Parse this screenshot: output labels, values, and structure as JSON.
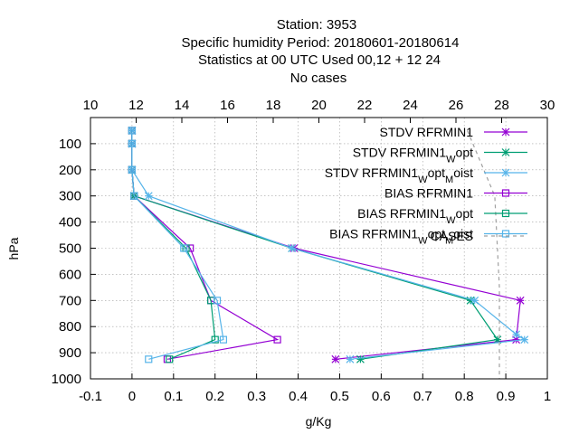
{
  "chart_data": {
    "type": "line",
    "title_lines": [
      "Station:     3953",
      "Specific humidity  Period: 20180601-20180614",
      "Statistics at 00 UTC  Used  00,12  + 12 24",
      "No cases"
    ],
    "xlabel": "g/Kg",
    "ylabel": "hPa",
    "xlim": [
      -0.1,
      1.0
    ],
    "ylim": [
      1000,
      0
    ],
    "x2lim": [
      10,
      30
    ],
    "x_ticks": [
      "-0.1",
      "0",
      "0.1",
      "0.2",
      "0.3",
      "0.4",
      "0.5",
      "0.6",
      "0.7",
      "0.8",
      "0.9",
      "1"
    ],
    "x_tick_values": [
      -0.1,
      0,
      0.1,
      0.2,
      0.3,
      0.4,
      0.5,
      0.6,
      0.7,
      0.8,
      0.9,
      1.0
    ],
    "x2_ticks": [
      "10",
      "12",
      "14",
      "16",
      "18",
      "20",
      "22",
      "24",
      "26",
      "28",
      "30"
    ],
    "x2_tick_values": [
      10,
      12,
      14,
      16,
      18,
      20,
      22,
      24,
      26,
      28,
      30
    ],
    "y_ticks": [
      "100",
      "200",
      "300",
      "400",
      "500",
      "600",
      "700",
      "800",
      "900",
      "1000"
    ],
    "y_tick_values": [
      100,
      200,
      300,
      400,
      500,
      600,
      700,
      800,
      900,
      1000
    ],
    "grid": true,
    "legend_position": "top-right",
    "series": [
      {
        "legend": {
          "main": "STDV RFRMIN1",
          "parts": []
        },
        "color": "#9400d3",
        "marker": "x",
        "axis": "x1",
        "points": [
          [
            0.0,
            50
          ],
          [
            0.0,
            100
          ],
          [
            0.0,
            200
          ],
          [
            0.005,
            300
          ],
          [
            0.39,
            500
          ],
          [
            0.935,
            700
          ],
          [
            0.925,
            850
          ],
          [
            0.49,
            925
          ]
        ]
      },
      {
        "legend": {
          "main": "STDV RFRMIN1",
          "parts": [
            [
              "W",
              "opt"
            ]
          ]
        },
        "color": "#009e73",
        "marker": "x",
        "axis": "x1",
        "points": [
          [
            0.0,
            50
          ],
          [
            0.0,
            100
          ],
          [
            0.0,
            200
          ],
          [
            0.005,
            300
          ],
          [
            0.385,
            500
          ],
          [
            0.815,
            700
          ],
          [
            0.88,
            850
          ],
          [
            0.55,
            925
          ]
        ]
      },
      {
        "legend": {
          "main": "STDV RFRMIN1",
          "parts": [
            [
              "W",
              "opt"
            ],
            [
              "M",
              "oist"
            ]
          ]
        },
        "color": "#56b4e9",
        "marker": "x",
        "axis": "x1",
        "points": [
          [
            0.0,
            50
          ],
          [
            0.0,
            100
          ],
          [
            0.0,
            200
          ],
          [
            0.04,
            300
          ],
          [
            0.385,
            500
          ],
          [
            0.825,
            700
          ],
          [
            0.925,
            830
          ],
          [
            0.945,
            850
          ],
          [
            0.525,
            925
          ]
        ]
      },
      {
        "legend": {
          "main": "BIAS RFRMIN1",
          "parts": []
        },
        "color": "#9400d3",
        "marker": "square",
        "axis": "x1",
        "points": [
          [
            0.0,
            50
          ],
          [
            0.0,
            100
          ],
          [
            0.0,
            200
          ],
          [
            0.005,
            300
          ],
          [
            0.14,
            500
          ],
          [
            0.19,
            700
          ],
          [
            0.35,
            850
          ],
          [
            0.085,
            925
          ]
        ]
      },
      {
        "legend": {
          "main": "BIAS RFRMIN1",
          "parts": [
            [
              "W",
              "opt"
            ]
          ]
        },
        "color": "#009e73",
        "marker": "square",
        "axis": "x1",
        "points": [
          [
            0.0,
            50
          ],
          [
            0.0,
            100
          ],
          [
            0.0,
            200
          ],
          [
            0.005,
            300
          ],
          [
            0.13,
            500
          ],
          [
            0.19,
            700
          ],
          [
            0.2,
            850
          ],
          [
            0.09,
            925
          ]
        ]
      },
      {
        "legend": {
          "main": "BIAS RFRMIN1",
          "parts": [
            [
              "W",
              "opt"
            ],
            [
              "M",
              "oist"
            ]
          ]
        },
        "color": "#56b4e9",
        "marker": "square",
        "axis": "x1",
        "points": [
          [
            0.0,
            50
          ],
          [
            0.0,
            100
          ],
          [
            0.0,
            200
          ],
          [
            0.005,
            300
          ],
          [
            0.125,
            500
          ],
          [
            0.205,
            700
          ],
          [
            0.22,
            850
          ],
          [
            0.04,
            925
          ]
        ]
      },
      {
        "legend": {
          "main": "CASES",
          "parts": []
        },
        "color": "#a0a0a0",
        "marker": "none",
        "dashed": true,
        "axis": "x2",
        "points": [
          [
            26.5,
            50
          ],
          [
            27.7,
            300
          ],
          [
            27.9,
            650
          ],
          [
            27.9,
            1000
          ]
        ]
      }
    ]
  }
}
